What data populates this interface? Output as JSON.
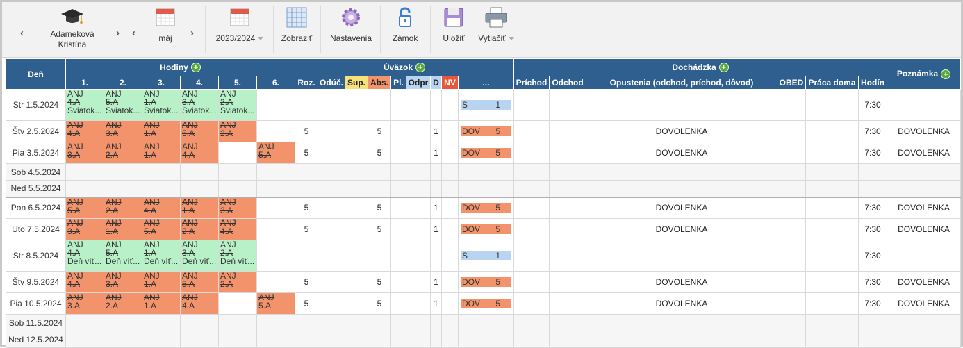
{
  "toolbar": {
    "person_line1": "Adameková",
    "person_line2": "Kristína",
    "month": "máj",
    "year": "2023/2024",
    "zobrazit": "Zobraziť",
    "nastavenia": "Nastavenia",
    "zamok": "Zámok",
    "ulozit": "Uložiť",
    "vytlacit": "Vytlačiť",
    "prev_arrow": "‹",
    "next_arrow": "›",
    "icons": [
      "graduation-cap-icon",
      "calendar-icon",
      "calendar-icon",
      "table-icon",
      "gear-icon",
      "padlock-icon",
      "floppy-disk-icon",
      "printer-icon"
    ]
  },
  "headers": {
    "den": "Deň",
    "hodiny": "Hodiny",
    "uvazok": "Úväzok",
    "dochadzka": "Dochádzka",
    "poznamka": "Poznámka",
    "plus": "+",
    "periods": [
      "1.",
      "2.",
      "3.",
      "4.",
      "5.",
      "6."
    ],
    "uvazok_cols": [
      "Roz.",
      "Odúč.",
      "Sup.",
      "Abs.",
      "Pl.",
      "Odpr",
      "D",
      "NV",
      "..."
    ],
    "dochadzka_cols": [
      "Príchod",
      "Odchod",
      "Opustenia (odchod, príchod, dôvod)",
      "OBED",
      "Práca doma",
      "Hodín"
    ]
  },
  "colors": {
    "header": "#2f5f8f",
    "green": "#b8f0c8",
    "orange": "#f2936b",
    "blue": "#b8d4f0"
  },
  "rows": [
    {
      "day": "Str 1.5.2024",
      "lessons": [
        [
          "ANJ",
          "4.A",
          "Sviatok..."
        ],
        [
          "ANJ",
          "5.A",
          "Sviatok..."
        ],
        [
          "ANJ",
          "1.A",
          "Sviatok..."
        ],
        [
          "ANJ",
          "3.A",
          "Sviatok..."
        ],
        [
          "ANJ",
          "2.A",
          "Sviatok..."
        ],
        null
      ],
      "tag": "S",
      "tagval": "1",
      "hours": "7:30"
    },
    {
      "day": "Štv 2.5.2024",
      "lessons": [
        [
          "ANJ",
          "4.A"
        ],
        [
          "ANJ",
          "3.A"
        ],
        [
          "ANJ",
          "1.A"
        ],
        [
          "ANJ",
          "5.A"
        ],
        [
          "ANJ",
          "2.A"
        ],
        null
      ],
      "roz": "5",
      "abs": "5",
      "d": "1",
      "tag": "DOV",
      "tagval": "5",
      "leave": "DOVOLENKA",
      "hours": "7:30",
      "note": "DOVOLENKA"
    },
    {
      "day": "Pia 3.5.2024",
      "lessons": [
        [
          "ANJ",
          "3.A"
        ],
        [
          "ANJ",
          "2.A"
        ],
        [
          "ANJ",
          "1.A"
        ],
        [
          "ANJ",
          "4.A"
        ],
        null,
        [
          "ANJ",
          "5.A"
        ]
      ],
      "roz": "5",
      "abs": "5",
      "d": "1",
      "tag": "DOV",
      "tagval": "5",
      "leave": "DOVOLENKA",
      "hours": "7:30",
      "note": "DOVOLENKA"
    },
    {
      "day": "Sob 4.5.2024"
    },
    {
      "day": "Ned 5.5.2024"
    },
    {
      "day": "Pon 6.5.2024",
      "lessons": [
        [
          "ANJ",
          "5.A"
        ],
        [
          "ANJ",
          "2.A"
        ],
        [
          "ANJ",
          "4.A"
        ],
        [
          "ANJ",
          "1.A"
        ],
        [
          "ANJ",
          "3.A"
        ],
        null
      ],
      "roz": "5",
      "abs": "5",
      "d": "1",
      "tag": "DOV",
      "tagval": "5",
      "leave": "DOVOLENKA",
      "hours": "7:30",
      "note": "DOVOLENKA"
    },
    {
      "day": "Uto 7.5.2024",
      "lessons": [
        [
          "ANJ",
          "3.A"
        ],
        [
          "ANJ",
          "1.A"
        ],
        [
          "ANJ",
          "5.A"
        ],
        [
          "ANJ",
          "2.A"
        ],
        [
          "ANJ",
          "4.A"
        ],
        null
      ],
      "roz": "5",
      "abs": "5",
      "d": "1",
      "tag": "DOV",
      "tagval": "5",
      "leave": "DOVOLENKA",
      "hours": "7:30",
      "note": "DOVOLENKA"
    },
    {
      "day": "Str 8.5.2024",
      "lessons": [
        [
          "ANJ",
          "4.A",
          "Deň víť..."
        ],
        [
          "ANJ",
          "5.A",
          "Deň víť..."
        ],
        [
          "ANJ",
          "1.A",
          "Deň víť..."
        ],
        [
          "ANJ",
          "3.A",
          "Deň víť..."
        ],
        [
          "ANJ",
          "2.A",
          "Deň víť..."
        ],
        null
      ],
      "tag": "S",
      "tagval": "1",
      "hours": "7:30"
    },
    {
      "day": "Štv 9.5.2024",
      "lessons": [
        [
          "ANJ",
          "4.A"
        ],
        [
          "ANJ",
          "3.A"
        ],
        [
          "ANJ",
          "1.A"
        ],
        [
          "ANJ",
          "5.A"
        ],
        [
          "ANJ",
          "2.A"
        ],
        null
      ],
      "roz": "5",
      "abs": "5",
      "d": "1",
      "tag": "DOV",
      "tagval": "5",
      "leave": "DOVOLENKA",
      "hours": "7:30",
      "note": "DOVOLENKA"
    },
    {
      "day": "Pia 10.5.2024",
      "lessons": [
        [
          "ANJ",
          "3.A"
        ],
        [
          "ANJ",
          "2.A"
        ],
        [
          "ANJ",
          "1.A"
        ],
        [
          "ANJ",
          "4.A"
        ],
        null,
        [
          "ANJ",
          "5.A"
        ]
      ],
      "roz": "5",
      "abs": "5",
      "d": "1",
      "tag": "DOV",
      "tagval": "5",
      "leave": "DOVOLENKA",
      "hours": "7:30",
      "note": "DOVOLENKA"
    },
    {
      "day": "Sob 11.5.2024"
    },
    {
      "day": "Ned 12.5.2024"
    }
  ]
}
